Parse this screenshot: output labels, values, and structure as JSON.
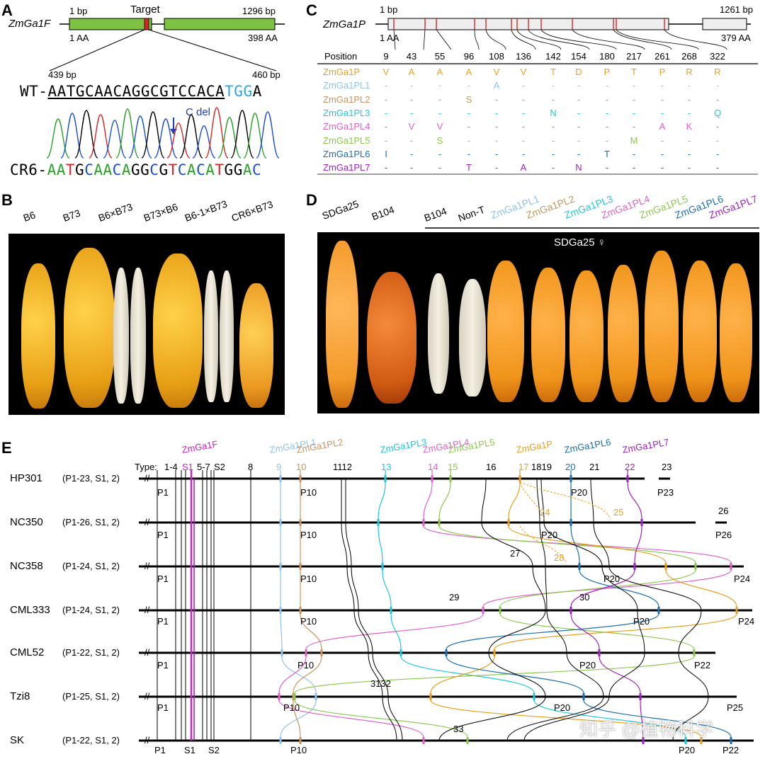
{
  "panels": {
    "A": "A",
    "B": "B",
    "C": "C",
    "D": "D",
    "E": "E"
  },
  "panelA": {
    "gene": "ZmGa1F",
    "start_bp": "1 bp",
    "target": "Target",
    "end_bp": "1296 bp",
    "start_aa": "1 AA",
    "end_aa": "398 AA",
    "zoom_start": "439 bp",
    "zoom_end": "460 bp",
    "wt_prefix": "WT-",
    "wt_main": "AATGCAACAGGCGTCCACA",
    "wt_pam": "TGG",
    "wt_tail": "A",
    "deletion": "C del",
    "cr6_prefix": "CR6-",
    "cr6_seq": "AATGCAACAGGCGTCACATGGAC",
    "colors": {
      "exon": "#7dc242",
      "pam": "#29a8e0",
      "target": "#d62728",
      "arrow": "#1f3fbf"
    }
  },
  "panelB": {
    "labels": [
      "B6",
      "B73",
      "B6×B73",
      "B73×B6",
      "B6-1×B73",
      "CR6×B73"
    ]
  },
  "panelC": {
    "gene": "ZmGa1P",
    "start_bp": "1 bp",
    "end_bp": "1261 bp",
    "start_aa": "1 AA",
    "end_aa": "379 AA",
    "header": "Position",
    "positions": [
      "9",
      "43",
      "55",
      "96",
      "108",
      "136",
      "142",
      "154",
      "180",
      "217",
      "261",
      "268",
      "322"
    ],
    "rows": [
      {
        "name": "ZmGa1P",
        "color": "#e8a020",
        "values": [
          "V",
          "A",
          "A",
          "A",
          "V",
          "V",
          "T",
          "D",
          "P",
          "T",
          "P",
          "R",
          "R"
        ]
      },
      {
        "name": "ZmGa1PL1",
        "color": "#8fc3ea",
        "values": [
          "-",
          "-",
          "-",
          "-",
          "A",
          "-",
          "-",
          "-",
          "-",
          "-",
          "-",
          "-",
          "-"
        ]
      },
      {
        "name": "ZmGa1PL2",
        "color": "#c89460",
        "values": [
          "-",
          "-",
          "-",
          "S",
          "-",
          "-",
          "-",
          "-",
          "-",
          "-",
          "-",
          "-",
          "-"
        ]
      },
      {
        "name": "ZmGa1PL3",
        "color": "#1fc8d8",
        "values": [
          "-",
          "-",
          "-",
          "-",
          "-",
          "-",
          "N",
          "-",
          "-",
          "-",
          "-",
          "-",
          "Q"
        ]
      },
      {
        "name": "ZmGa1PL4",
        "color": "#e060c8",
        "values": [
          "-",
          "V",
          "V",
          "-",
          "-",
          "-",
          "-",
          "-",
          "-",
          "-",
          "A",
          "K",
          "-"
        ]
      },
      {
        "name": "ZmGa1PL5",
        "color": "#8cc850",
        "values": [
          "-",
          "-",
          "S",
          "-",
          "-",
          "-",
          "-",
          "-",
          "-",
          "M",
          "-",
          "-",
          "-"
        ]
      },
      {
        "name": "ZmGa1PL6",
        "color": "#1a6fb0",
        "values": [
          "I",
          "-",
          "-",
          "-",
          "-",
          "-",
          "-",
          "-",
          "T",
          "-",
          "-",
          "-",
          "-"
        ]
      },
      {
        "name": "ZmGa1PL7",
        "color": "#a020c0",
        "values": [
          "-",
          "-",
          "-",
          "T",
          "-",
          "A",
          "-",
          "N",
          "-",
          "-",
          "-",
          "-",
          "-"
        ]
      }
    ]
  },
  "panelD": {
    "labels_top": [
      "SDGa25",
      "B104"
    ],
    "labels_bar": [
      "B104",
      "Non-T"
    ],
    "labels_colored": [
      {
        "text": "ZmGa1PL1",
        "color": "#8fc3ea"
      },
      {
        "text": "ZmGa1PL2",
        "color": "#c89460"
      },
      {
        "text": "ZmGa1PL3",
        "color": "#1fc8d8"
      },
      {
        "text": "ZmGa1PL4",
        "color": "#e060c8"
      },
      {
        "text": "ZmGa1PL5",
        "color": "#8cc850"
      },
      {
        "text": "ZmGa1PL6",
        "color": "#1a6fb0"
      },
      {
        "text": "ZmGa1PL7",
        "color": "#a020c0"
      }
    ],
    "female": "SDGa25 ♀"
  },
  "panelE": {
    "type_label": "Type:",
    "top_markers": [
      {
        "text": "1-4",
        "color": "#000"
      },
      {
        "text": "S1",
        "color": "#d020c8"
      },
      {
        "text": "5-7",
        "color": "#000"
      },
      {
        "text": "S2",
        "color": "#000"
      },
      {
        "text": "8",
        "color": "#000"
      },
      {
        "text": "9",
        "color": "#8fc3ea"
      },
      {
        "text": "10",
        "color": "#c89460"
      },
      {
        "text": "1112",
        "color": "#000"
      },
      {
        "text": "13",
        "color": "#1fc8d8"
      },
      {
        "text": "14",
        "color": "#e060c8"
      },
      {
        "text": "15",
        "color": "#8cc850"
      },
      {
        "text": "16",
        "color": "#000"
      },
      {
        "text": "17",
        "color": "#e8a020"
      },
      {
        "text": "1819",
        "color": "#000"
      },
      {
        "text": "20",
        "color": "#1a6fb0"
      },
      {
        "text": "21",
        "color": "#000"
      },
      {
        "text": "22",
        "color": "#a020c0"
      },
      {
        "text": "23",
        "color": "#000"
      }
    ],
    "gene_labels": [
      {
        "text": "ZmGa1F",
        "color": "#d020c8"
      },
      {
        "text": "ZmGa1PL1",
        "color": "#8fc3ea"
      },
      {
        "text": "ZmGa1PL2",
        "color": "#c89460"
      },
      {
        "text": "ZmGa1PL3",
        "color": "#1fc8d8"
      },
      {
        "text": "ZmGa1PL4",
        "color": "#e060c8"
      },
      {
        "text": "ZmGa1PL5",
        "color": "#8cc850"
      },
      {
        "text": "ZmGa1P",
        "color": "#e8a020"
      },
      {
        "text": "ZmGa1PL6",
        "color": "#1a6fb0"
      },
      {
        "text": "ZmGa1PL7",
        "color": "#a020c0"
      }
    ],
    "lines": [
      {
        "name": "HP301",
        "types": "(P1-23, S1, 2)"
      },
      {
        "name": "NC350",
        "types": "(P1-26, S1, 2)"
      },
      {
        "name": "NC358",
        "types": "(P1-24, S1, 2)"
      },
      {
        "name": "CML333",
        "types": "(P1-24, S1, 2)"
      },
      {
        "name": "CML52",
        "types": "(P1-22, S1, 2)"
      },
      {
        "name": "Tzi8",
        "types": "(P1-25, S1, 2)"
      },
      {
        "name": "SK",
        "types": "(P1-22, S1, 2)"
      }
    ],
    "under_labels": {
      "p1": "P1",
      "p10": "P10",
      "p20": "P20",
      "p22": "P22",
      "p23": "P23",
      "p24": "P24",
      "p25": "P25",
      "p26": "P26",
      "s1": "S1",
      "s2": "S2"
    },
    "extra_numbers": {
      "n24": "24",
      "n25": "25",
      "n26": "26",
      "n27": "27",
      "n28": "28",
      "n29": "29",
      "n30": "30",
      "n31_32": "3132",
      "n33": "33"
    }
  },
  "watermark": "知乎 @植物科学"
}
